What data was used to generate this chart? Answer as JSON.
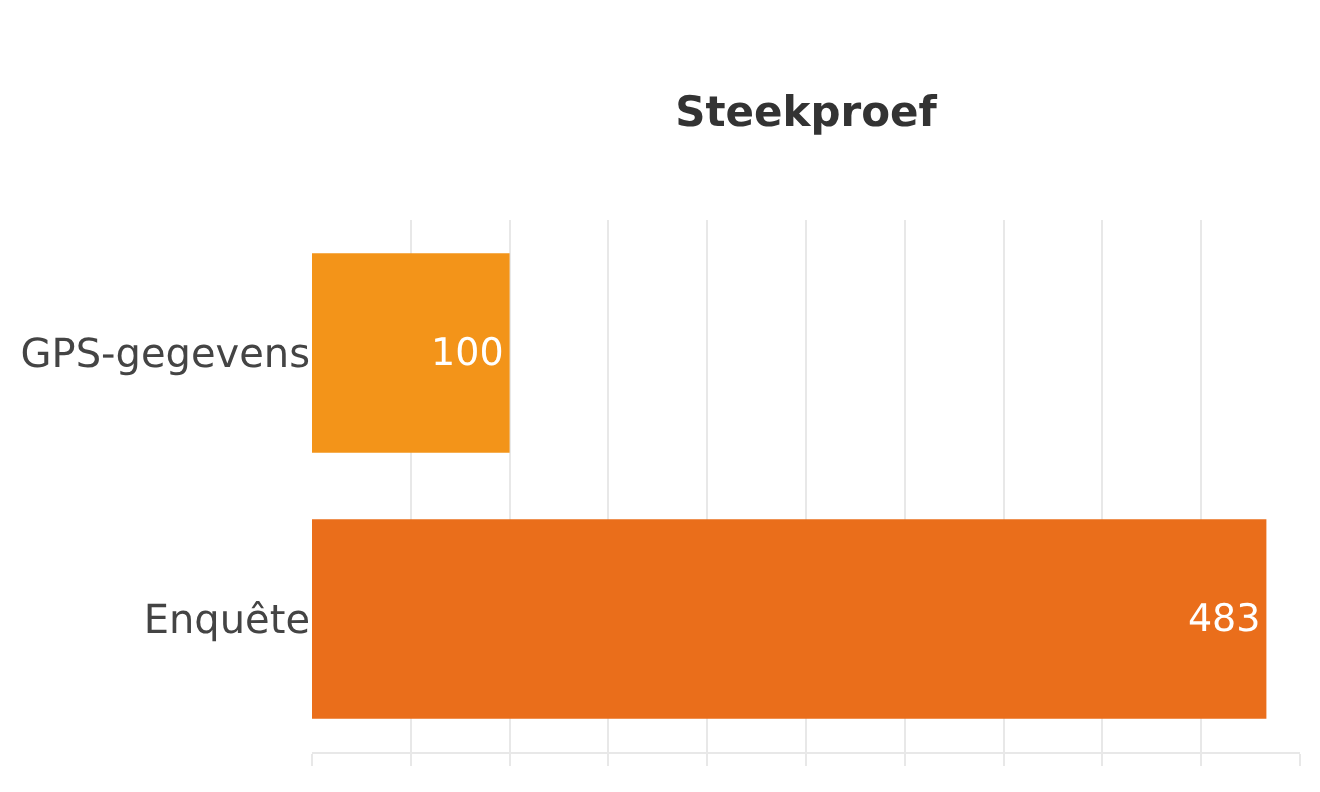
{
  "chart_data": {
    "type": "bar",
    "orientation": "horizontal",
    "title": "Steekproef",
    "categories": [
      "GPS-gegevens",
      "Enquête"
    ],
    "values": [
      100,
      483
    ],
    "colors": [
      "#f39419",
      "#ea6e1b"
    ],
    "data_labels": true,
    "xlim": [
      0,
      500
    ],
    "xticks": [
      {
        "value": 0,
        "label": null
      },
      {
        "value": 50,
        "label": null
      },
      {
        "value": 100,
        "label": null
      },
      {
        "value": 150,
        "label": null
      },
      {
        "value": 200,
        "label": null
      },
      {
        "value": 250,
        "label": null
      },
      {
        "value": 300,
        "label": null
      },
      {
        "value": 350,
        "label": null
      },
      {
        "value": 400,
        "label": null
      },
      {
        "value": 450,
        "label": null
      },
      {
        "value": 500,
        "label": null
      }
    ],
    "tick_labels": "y",
    "grid": "x",
    "legend": false
  }
}
